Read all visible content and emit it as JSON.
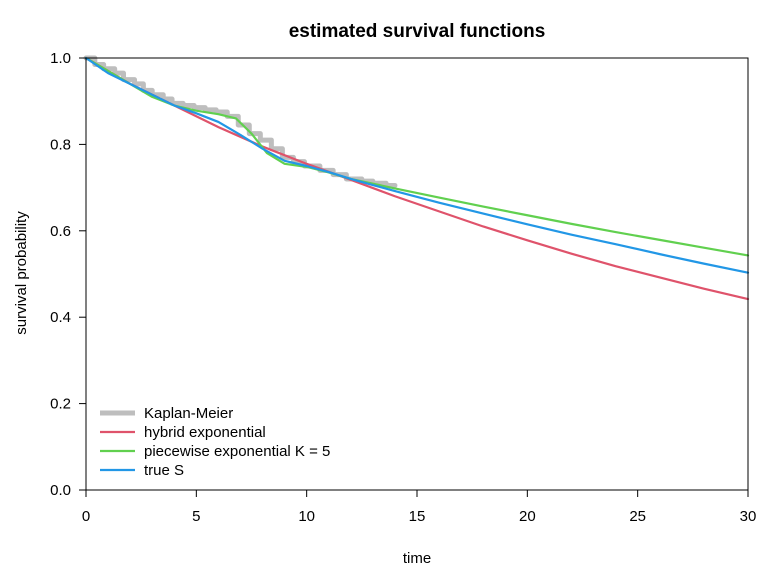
{
  "chart_data": {
    "type": "line",
    "title": "estimated survival functions",
    "xlabel": "time",
    "ylabel": "survival probability",
    "xlim": [
      0,
      30
    ],
    "ylim": [
      0,
      1
    ],
    "x_ticks": [
      "0",
      "5",
      "10",
      "15",
      "20",
      "25",
      "30"
    ],
    "y_ticks": [
      "0.0",
      "0.2",
      "0.4",
      "0.6",
      "0.8",
      "1.0"
    ],
    "grid": false,
    "legend_position": "bottom-left",
    "series": [
      {
        "name": "Kaplan-Meier",
        "color": "#bebebe",
        "style": "step",
        "x": [
          0,
          0.4,
          0.8,
          1.3,
          1.7,
          2.2,
          2.6,
          3.0,
          3.5,
          3.9,
          4.4,
          4.9,
          5.4,
          5.9,
          6.4,
          6.9,
          7.4,
          7.9,
          8.4,
          8.9,
          9.4,
          9.9,
          10.6,
          11.2,
          11.8,
          12.5,
          13.0,
          13.6,
          14.0
        ],
        "y": [
          1.0,
          0.985,
          0.975,
          0.965,
          0.95,
          0.94,
          0.925,
          0.915,
          0.905,
          0.895,
          0.89,
          0.885,
          0.88,
          0.875,
          0.865,
          0.845,
          0.825,
          0.81,
          0.79,
          0.77,
          0.76,
          0.75,
          0.74,
          0.73,
          0.72,
          0.715,
          0.71,
          0.705,
          0.705
        ]
      },
      {
        "name": "hybrid exponential",
        "color": "#df536b",
        "style": "line",
        "x": [
          0,
          2,
          4,
          6,
          8,
          10,
          12,
          14,
          16,
          18,
          20,
          22,
          24,
          26,
          28,
          30
        ],
        "y": [
          1.0,
          0.94,
          0.89,
          0.84,
          0.795,
          0.755,
          0.718,
          0.68,
          0.645,
          0.61,
          0.578,
          0.547,
          0.518,
          0.492,
          0.466,
          0.442
        ]
      },
      {
        "name": "piecewise exponential K = 5",
        "color": "#61d04f",
        "style": "line",
        "x": [
          0,
          1,
          2,
          3,
          4,
          5,
          6,
          6.8,
          7.5,
          8.2,
          9,
          10,
          11,
          12,
          14,
          16,
          18,
          20,
          22,
          24,
          26,
          28,
          30
        ],
        "y": [
          1.0,
          0.97,
          0.94,
          0.91,
          0.89,
          0.878,
          0.87,
          0.86,
          0.825,
          0.78,
          0.755,
          0.748,
          0.735,
          0.72,
          0.698,
          0.677,
          0.656,
          0.636,
          0.616,
          0.597,
          0.579,
          0.561,
          0.543
        ]
      },
      {
        "name": "true S",
        "color": "#2297e6",
        "style": "line",
        "x": [
          0,
          1,
          2,
          3,
          4,
          5,
          6,
          7,
          8,
          9,
          10,
          11,
          12,
          13,
          14,
          16,
          18,
          20,
          22,
          24,
          26,
          28,
          30
        ],
        "y": [
          1.0,
          0.965,
          0.94,
          0.915,
          0.89,
          0.872,
          0.852,
          0.822,
          0.79,
          0.762,
          0.75,
          0.736,
          0.72,
          0.706,
          0.692,
          0.665,
          0.64,
          0.615,
          0.591,
          0.569,
          0.546,
          0.524,
          0.503
        ]
      }
    ]
  }
}
